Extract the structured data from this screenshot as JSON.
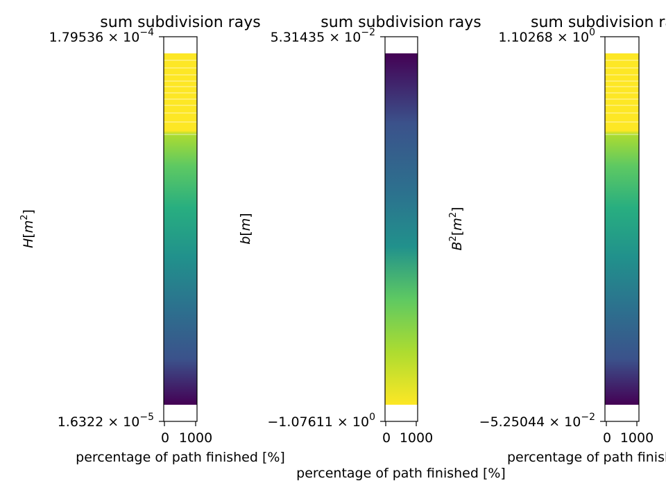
{
  "chart_data": [
    {
      "type": "heatmap",
      "title": "sum subdivision rays",
      "xlabel": "percentage of path finished [%]",
      "ylabel": "H[m²]",
      "ylabel_symbol": "H",
      "ylabel_unit": "[m²]",
      "x_ticks": [
        "0",
        "1000"
      ],
      "y_ticks": [
        {
          "mantissa": "1.79536",
          "exp": "−4"
        },
        {
          "mantissa": "1.6322",
          "exp": "−5"
        }
      ],
      "colormap": "viridis",
      "direction": "ascending",
      "has_band_lines": true
    },
    {
      "type": "heatmap",
      "title": "sum subdivision rays",
      "xlabel": "percentage of path finished [%]",
      "ylabel": "b[m]",
      "ylabel_symbol": "b",
      "ylabel_unit": "[m]",
      "x_ticks": [
        "0",
        "1000"
      ],
      "y_ticks": [
        {
          "mantissa": "5.31435",
          "exp": "−2"
        },
        {
          "mantissa": "−1.07611",
          "exp": "0"
        }
      ],
      "colormap": "viridis",
      "direction": "descending",
      "has_band_lines": false
    },
    {
      "type": "heatmap",
      "title": "sum subdivision rays",
      "xlabel": "percentage of path finished [%]",
      "ylabel": "B²[m²]",
      "ylabel_symbol": "B",
      "ylabel_unit": "[m²]",
      "x_ticks": [
        "0",
        "1000"
      ],
      "y_ticks": [
        {
          "mantissa": "1.10268",
          "exp": "0"
        },
        {
          "mantissa": "−5.25044",
          "exp": "−2"
        }
      ],
      "colormap": "viridis",
      "direction": "ascending",
      "has_band_lines": true
    }
  ]
}
